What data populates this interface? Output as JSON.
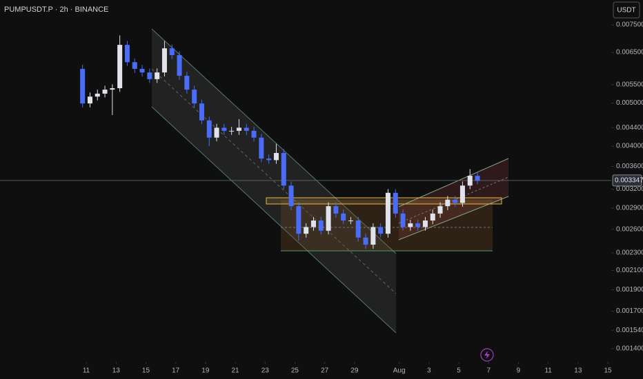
{
  "chart_data": {
    "type": "candlestick",
    "title": "PUMPUSDT.P · 2h · BINANCE",
    "currency_button": "USDT",
    "log_scale": true,
    "up_color": "#e0e3eb",
    "down_color": "#4a6cf7",
    "current_price": 0.003347,
    "xlim": [
      5.21,
      46.23
    ],
    "ylim": [
      0.001308,
      0.00853
    ],
    "xticks": [
      11,
      13,
      15,
      17,
      19,
      21,
      23,
      25,
      27,
      29,
      {
        "value": 32,
        "label": "Aug"
      },
      {
        "value": 34,
        "label": "3"
      },
      {
        "value": 36,
        "label": "5"
      },
      {
        "value": 38,
        "label": "7"
      },
      {
        "value": 40,
        "label": "9"
      },
      {
        "value": 42,
        "label": "11"
      },
      {
        "value": 44,
        "label": "13"
      },
      {
        "value": 46,
        "label": "15"
      }
    ],
    "yticks": [
      {
        "value": 0.0075,
        "label": "0.007500"
      },
      {
        "value": 0.0065,
        "label": "0.006500"
      },
      {
        "value": 0.0055,
        "label": "0.005500"
      },
      {
        "value": 0.005,
        "label": "0.005000"
      },
      {
        "value": 0.0044,
        "label": "0.004400"
      },
      {
        "value": 0.004,
        "label": "0.004000"
      },
      {
        "value": 0.0036,
        "label": "0.003600"
      },
      {
        "value": 0.0032,
        "label": "0.003200"
      },
      {
        "value": 0.0029,
        "label": "0.002900"
      },
      {
        "value": 0.0026,
        "label": "0.002600"
      },
      {
        "value": 0.0023,
        "label": "0.002300"
      },
      {
        "value": 0.0021,
        "label": "0.002100"
      },
      {
        "value": 0.0019,
        "label": "0.001900"
      },
      {
        "value": 0.0017,
        "label": "0.001700"
      },
      {
        "value": 0.00154,
        "label": "0.001540"
      },
      {
        "value": 0.0014,
        "label": "0.001400"
      }
    ],
    "x": [
      10.75,
      11.25,
      11.75,
      12.25,
      12.75,
      13.25,
      13.75,
      14.25,
      14.75,
      15.25,
      15.75,
      16.25,
      16.75,
      17.25,
      17.75,
      18.25,
      18.75,
      19.25,
      19.75,
      20.25,
      20.75,
      21.25,
      21.75,
      22.25,
      22.75,
      23.25,
      23.75,
      24.25,
      24.75,
      25.25,
      25.75,
      26.25,
      26.75,
      27.25,
      27.75,
      28.25,
      28.75,
      29.25,
      29.75,
      30.25,
      30.75,
      31.25,
      31.75,
      32.25,
      32.75,
      33.25,
      33.75,
      34.25,
      34.75,
      35.25,
      35.75,
      36.25,
      36.75,
      37.25
    ],
    "open": [
      0.00597,
      0.00499,
      0.00517,
      0.00525,
      0.00536,
      0.0054,
      0.00676,
      0.00618,
      0.00597,
      0.00586,
      0.00566,
      0.00586,
      0.00664,
      0.00641,
      0.00576,
      0.00536,
      0.00499,
      0.00457,
      0.00418,
      0.0044,
      0.00433,
      0.00433,
      0.0044,
      0.00433,
      0.00418,
      0.00375,
      0.00372,
      0.00386,
      0.00326,
      0.00293,
      0.00254,
      0.00263,
      0.00272,
      0.00258,
      0.00293,
      0.00282,
      0.00272,
      0.00272,
      0.00249,
      0.0024,
      0.00263,
      0.00254,
      0.00314,
      0.00282,
      0.00263,
      0.00268,
      0.00263,
      0.00272,
      0.00282,
      0.00293,
      0.00303,
      0.00298,
      0.00326,
      0.00343
    ],
    "high": [
      0.0061,
      0.00528,
      0.00536,
      0.00547,
      0.00551,
      0.0071,
      0.0069,
      0.0063,
      0.00609,
      0.00598,
      0.00598,
      0.0069,
      0.00677,
      0.00654,
      0.00588,
      0.00547,
      0.00509,
      0.00466,
      0.00449,
      0.00449,
      0.00442,
      0.0046,
      0.00449,
      0.00442,
      0.00426,
      0.00383,
      0.00405,
      0.00394,
      0.00333,
      0.00299,
      0.00268,
      0.00277,
      0.00277,
      0.00299,
      0.00299,
      0.00288,
      0.00277,
      0.00277,
      0.00254,
      0.00268,
      0.00268,
      0.0032,
      0.0032,
      0.00288,
      0.00273,
      0.00273,
      0.00277,
      0.00288,
      0.00299,
      0.00309,
      0.00309,
      0.00333,
      0.00355,
      0.0035
    ],
    "low": [
      0.00489,
      0.00489,
      0.00507,
      0.00515,
      0.0047,
      0.0053,
      0.00606,
      0.00585,
      0.00574,
      0.00555,
      0.00555,
      0.00574,
      0.00628,
      0.00564,
      0.00525,
      0.00489,
      0.00448,
      0.004,
      0.0041,
      0.00424,
      0.00424,
      0.00424,
      0.00424,
      0.0041,
      0.00368,
      0.00365,
      0.00365,
      0.0032,
      0.00287,
      0.00245,
      0.00249,
      0.00258,
      0.00253,
      0.00253,
      0.00276,
      0.00267,
      0.00267,
      0.00244,
      0.00235,
      0.00235,
      0.00249,
      0.00249,
      0.00276,
      0.00258,
      0.00258,
      0.00258,
      0.00258,
      0.00267,
      0.00276,
      0.00287,
      0.00292,
      0.00292,
      0.0032,
      0.00328
    ],
    "close": [
      0.00499,
      0.00517,
      0.00525,
      0.00536,
      0.0054,
      0.00676,
      0.00618,
      0.00597,
      0.00586,
      0.00566,
      0.00586,
      0.00664,
      0.00641,
      0.00576,
      0.00536,
      0.00499,
      0.00457,
      0.00418,
      0.0044,
      0.00433,
      0.00433,
      0.0044,
      0.00433,
      0.00418,
      0.00375,
      0.00372,
      0.00386,
      0.00326,
      0.00293,
      0.00254,
      0.00263,
      0.00272,
      0.00258,
      0.00293,
      0.00282,
      0.00272,
      0.00272,
      0.00249,
      0.0024,
      0.00263,
      0.00254,
      0.00314,
      0.00282,
      0.00263,
      0.00268,
      0.00263,
      0.00272,
      0.00282,
      0.00293,
      0.00303,
      0.00298,
      0.00326,
      0.00343,
      0.00334
    ]
  }
}
